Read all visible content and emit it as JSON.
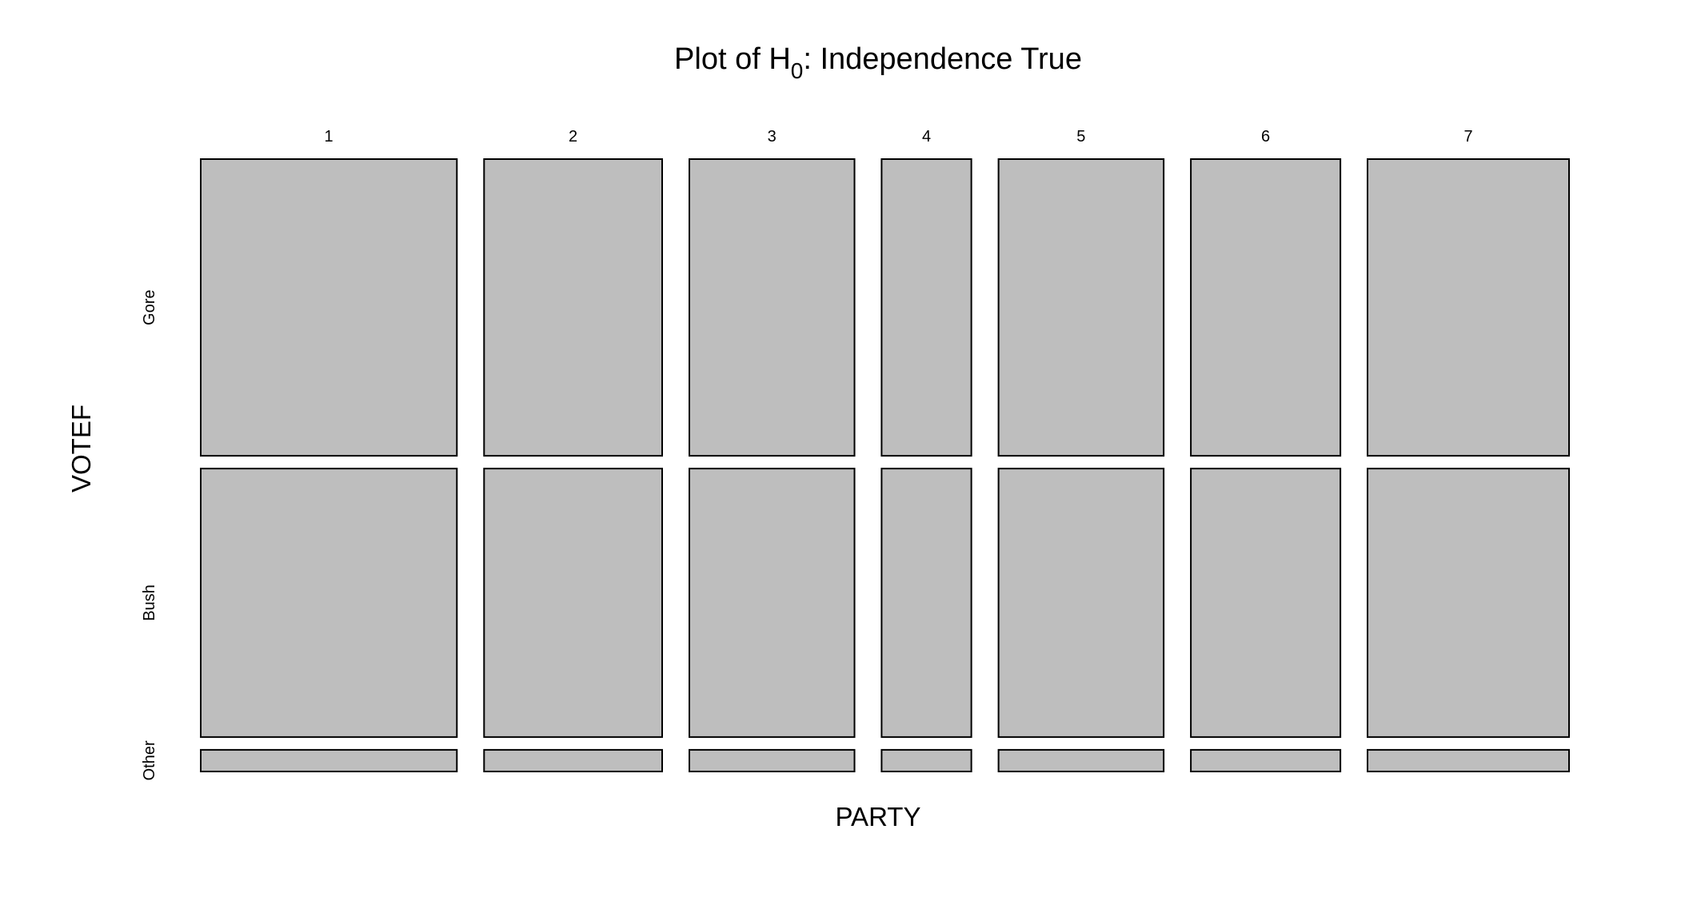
{
  "chart_data": {
    "type": "mosaic",
    "title": {
      "prefix": "Plot of H",
      "subscript": "0",
      "suffix": ":  Independence True"
    },
    "xlabel": "PARTY",
    "ylabel": "VOTEF",
    "x_categories": [
      "1",
      "2",
      "3",
      "4",
      "5",
      "6",
      "7"
    ],
    "x_proportions": [
      0.197,
      0.137,
      0.127,
      0.069,
      0.127,
      0.115,
      0.155
    ],
    "y_categories": [
      "Gore",
      "Bush",
      "Other"
    ],
    "y_proportions": [
      0.493,
      0.446,
      0.036
    ],
    "fill_color": "#bebebe",
    "grid": false
  }
}
